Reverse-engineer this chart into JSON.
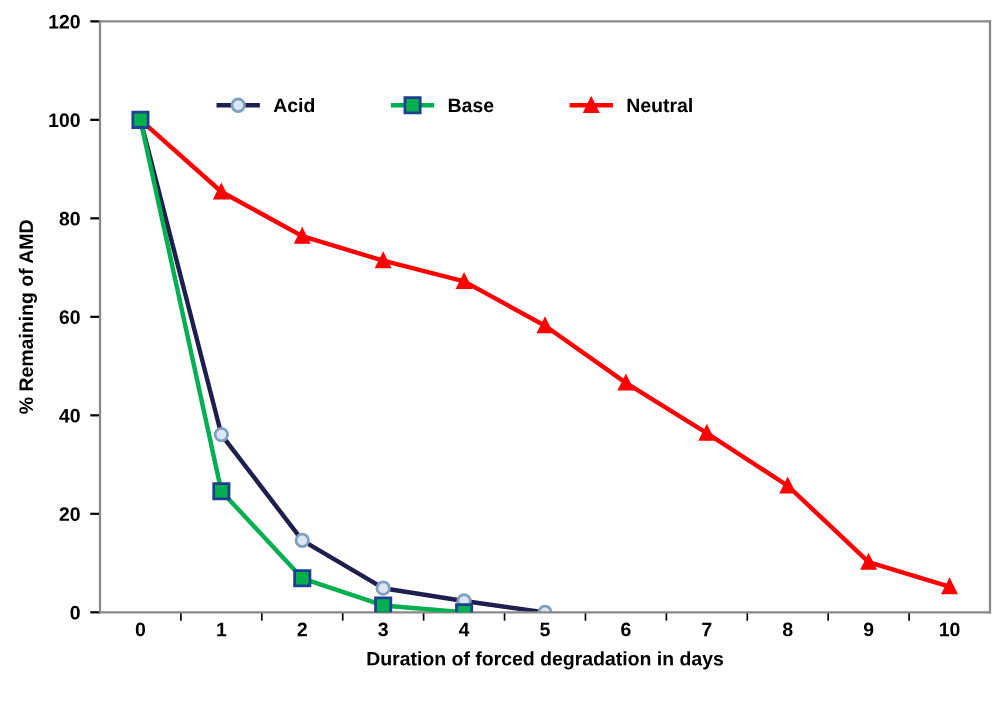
{
  "chart_data": {
    "type": "line",
    "xlabel": "Duration of forced degradation in days",
    "ylabel": "% Remaining of AMD",
    "categories": [
      "0",
      "1",
      "2",
      "3",
      "4",
      "5",
      "6",
      "7",
      "8",
      "9",
      "10"
    ],
    "series": [
      {
        "name": "Acid",
        "color": "#1f1f4f",
        "marker": "circle",
        "values": [
          100,
          36.1,
          14.6,
          4.9,
          2.3,
          0,
          null,
          null,
          null,
          null,
          null
        ]
      },
      {
        "name": "Base",
        "color": "#00b050",
        "marker": "square",
        "values": [
          100,
          24.6,
          6.9,
          1.4,
          0,
          null,
          null,
          null,
          null,
          null,
          null
        ]
      },
      {
        "name": "Neutral",
        "color": "#ff0000",
        "marker": "triangle",
        "values": [
          100,
          85.4,
          76.4,
          71.4,
          67.2,
          58.2,
          46.6,
          36.4,
          25.7,
          10.2,
          5.2
        ]
      }
    ],
    "ylim": [
      0,
      120
    ],
    "yticks": [
      0,
      20,
      40,
      60,
      80,
      100,
      120
    ],
    "grid": false,
    "legend": "top"
  }
}
